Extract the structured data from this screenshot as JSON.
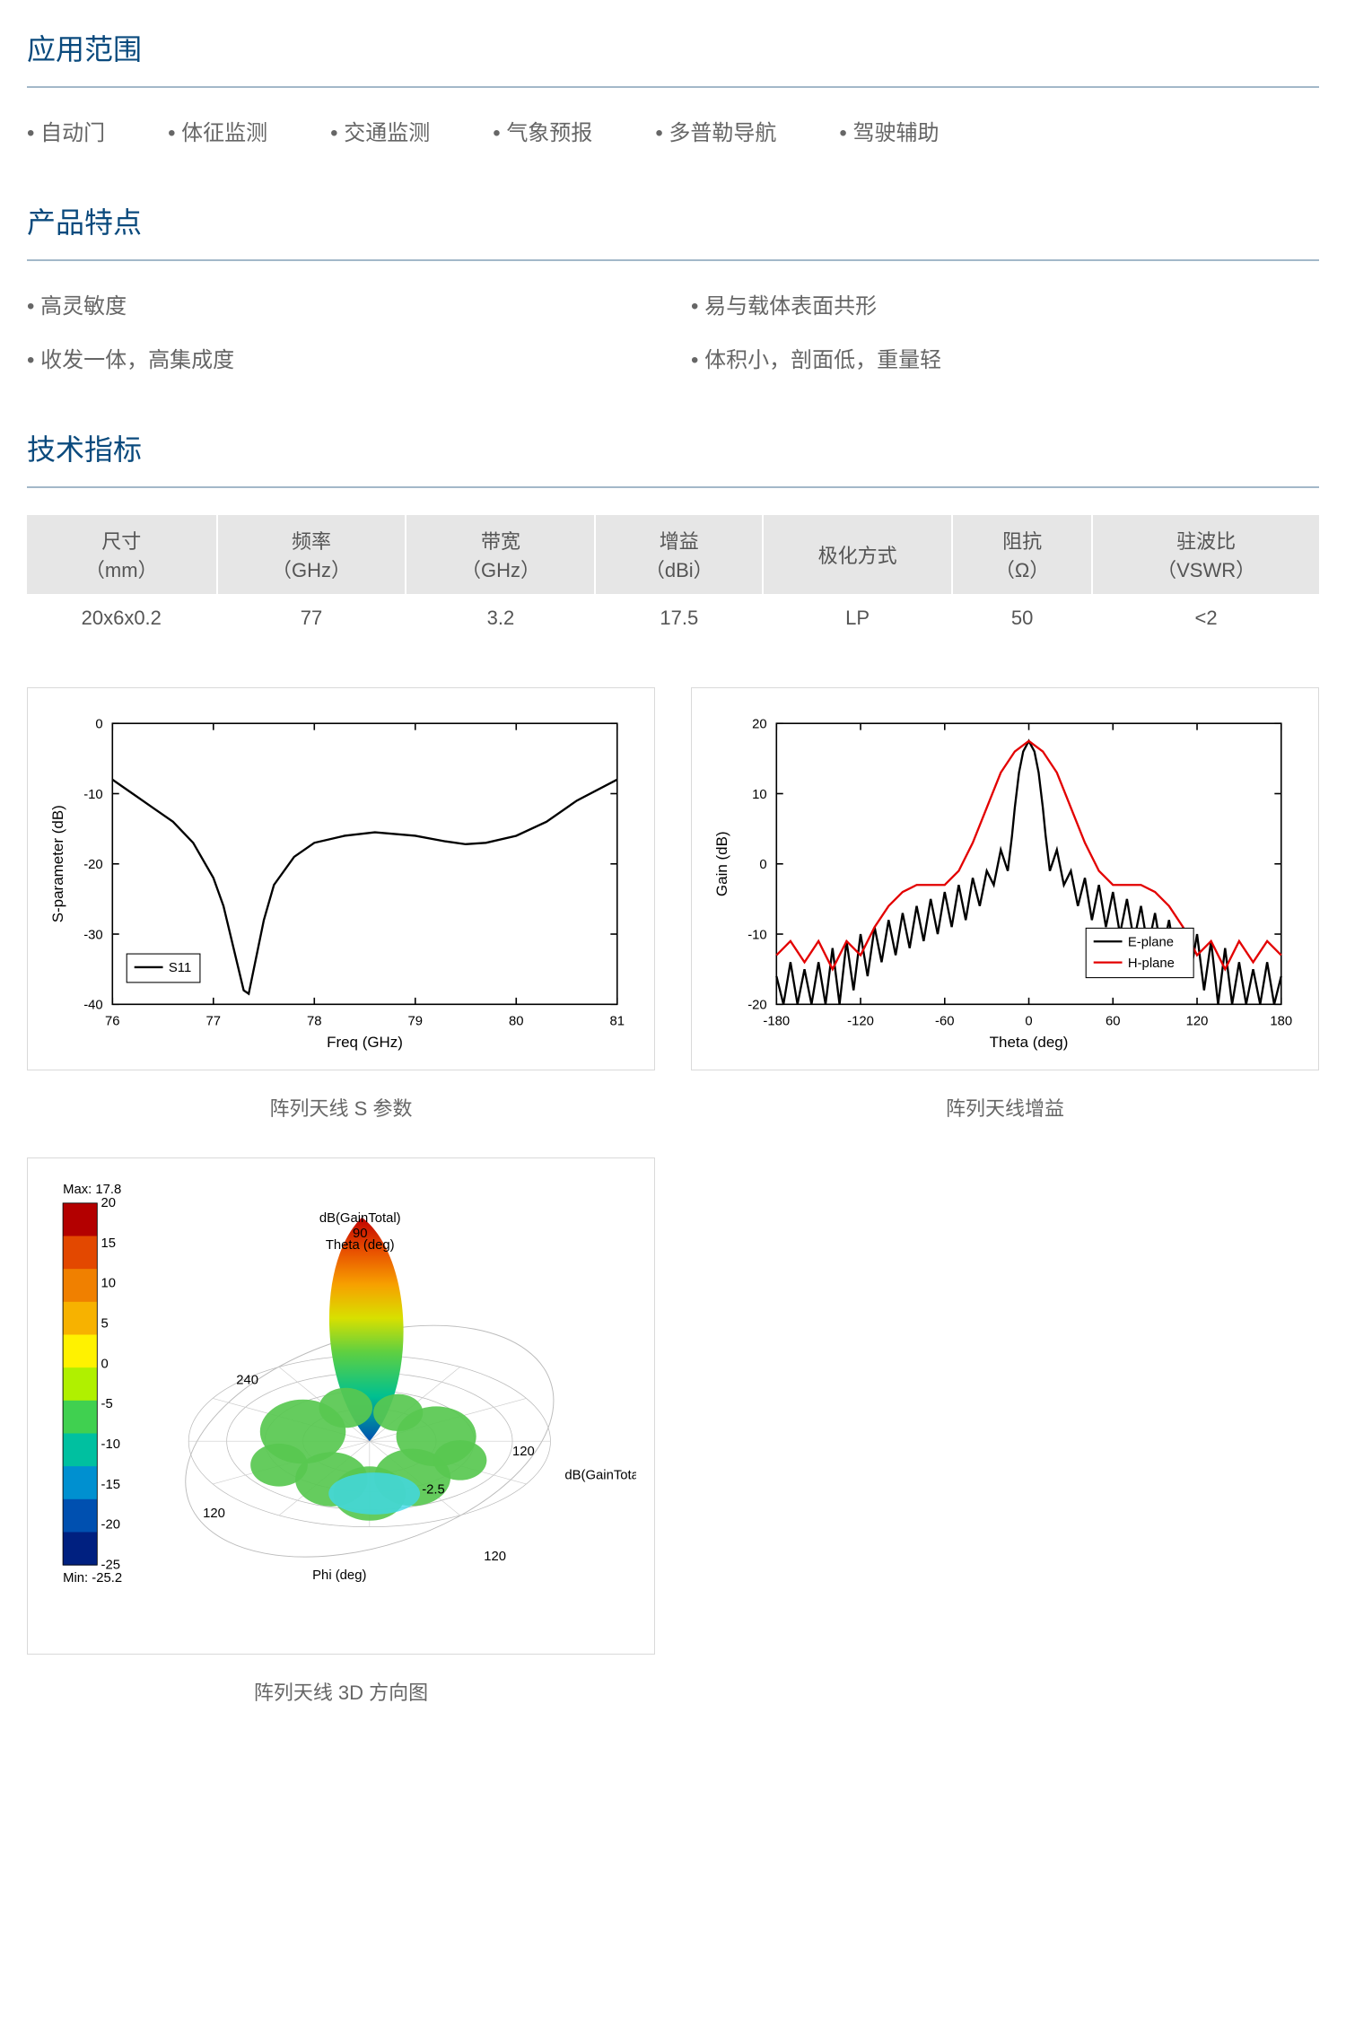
{
  "colors": {
    "heading": "#0a4a7d",
    "border": "#a3b8c9",
    "bullet_text": "#666666",
    "table_header_bg": "#e6e6e6"
  },
  "sections": {
    "applications": {
      "title": "应用范围"
    },
    "features": {
      "title": "产品特点"
    },
    "specs": {
      "title": "技术指标"
    }
  },
  "applications": [
    "自动门",
    "体征监测",
    "交通监测",
    "气象预报",
    "多普勒导航",
    "驾驶辅助"
  ],
  "features": [
    "高灵敏度",
    "易与载体表面共形",
    "收发一体，高集成度",
    "体积小，剖面低，重量轻"
  ],
  "spec_table": {
    "headers": [
      {
        "label": "尺寸",
        "unit": "（mm）"
      },
      {
        "label": "频率",
        "unit": "（GHz）"
      },
      {
        "label": "带宽",
        "unit": "（GHz）"
      },
      {
        "label": "增益",
        "unit": "（dBi）"
      },
      {
        "label": "极化方式",
        "unit": ""
      },
      {
        "label": "阻抗",
        "unit": "（Ω）"
      },
      {
        "label": "驻波比",
        "unit": "（VSWR）"
      }
    ],
    "row": [
      "20x6x0.2",
      "77",
      "3.2",
      "17.5",
      "LP",
      "50",
      "<2"
    ]
  },
  "chart_s11": {
    "caption": "阵列天线 S 参数",
    "type": "line",
    "xlabel": "Freq (GHz)",
    "ylabel": "S-parameter (dB)",
    "xlim": [
      76,
      81
    ],
    "xtick_step": 1,
    "ylim": [
      -40,
      0
    ],
    "ytick_step": 10,
    "legend": {
      "label": "S11",
      "color": "#000000"
    },
    "line_color": "#000000",
    "line_width": 2.2,
    "points": [
      [
        76.0,
        -8
      ],
      [
        76.2,
        -10
      ],
      [
        76.4,
        -12
      ],
      [
        76.6,
        -14
      ],
      [
        76.8,
        -17
      ],
      [
        77.0,
        -22
      ],
      [
        77.1,
        -26
      ],
      [
        77.2,
        -32
      ],
      [
        77.3,
        -38
      ],
      [
        77.35,
        -38.5
      ],
      [
        77.4,
        -35
      ],
      [
        77.5,
        -28
      ],
      [
        77.6,
        -23
      ],
      [
        77.8,
        -19
      ],
      [
        78.0,
        -17
      ],
      [
        78.3,
        -16
      ],
      [
        78.6,
        -15.5
      ],
      [
        79.0,
        -16
      ],
      [
        79.3,
        -16.8
      ],
      [
        79.5,
        -17.2
      ],
      [
        79.7,
        -17.0
      ],
      [
        80.0,
        -16
      ],
      [
        80.3,
        -14
      ],
      [
        80.6,
        -11
      ],
      [
        81.0,
        -8
      ]
    ]
  },
  "chart_gain": {
    "caption": "阵列天线增益",
    "type": "line",
    "xlabel": "Theta (deg)",
    "ylabel": "Gain (dB)",
    "xlim": [
      -180,
      180
    ],
    "xtick_step": 60,
    "ylim": [
      -20,
      20
    ],
    "ytick_step": 10,
    "series": [
      {
        "label": "E-plane",
        "color": "#000000",
        "points": [
          [
            -180,
            -16
          ],
          [
            -175,
            -20
          ],
          [
            -170,
            -14
          ],
          [
            -165,
            -20
          ],
          [
            -160,
            -15
          ],
          [
            -155,
            -20
          ],
          [
            -150,
            -14
          ],
          [
            -145,
            -20
          ],
          [
            -140,
            -12
          ],
          [
            -135,
            -20
          ],
          [
            -130,
            -11
          ],
          [
            -125,
            -18
          ],
          [
            -120,
            -10
          ],
          [
            -115,
            -16
          ],
          [
            -110,
            -9
          ],
          [
            -105,
            -14
          ],
          [
            -100,
            -8
          ],
          [
            -95,
            -13
          ],
          [
            -90,
            -7
          ],
          [
            -85,
            -12
          ],
          [
            -80,
            -6
          ],
          [
            -75,
            -11
          ],
          [
            -70,
            -5
          ],
          [
            -65,
            -10
          ],
          [
            -60,
            -4
          ],
          [
            -55,
            -9
          ],
          [
            -50,
            -3
          ],
          [
            -45,
            -8
          ],
          [
            -40,
            -2
          ],
          [
            -35,
            -6
          ],
          [
            -30,
            -1
          ],
          [
            -25,
            -3
          ],
          [
            -20,
            2
          ],
          [
            -15,
            -1
          ],
          [
            -12,
            4
          ],
          [
            -10,
            8
          ],
          [
            -7,
            13
          ],
          [
            -4,
            16
          ],
          [
            0,
            17.5
          ],
          [
            4,
            16
          ],
          [
            7,
            13
          ],
          [
            10,
            8
          ],
          [
            12,
            4
          ],
          [
            15,
            -1
          ],
          [
            20,
            2
          ],
          [
            25,
            -3
          ],
          [
            30,
            -1
          ],
          [
            35,
            -6
          ],
          [
            40,
            -2
          ],
          [
            45,
            -8
          ],
          [
            50,
            -3
          ],
          [
            55,
            -9
          ],
          [
            60,
            -4
          ],
          [
            65,
            -10
          ],
          [
            70,
            -5
          ],
          [
            75,
            -11
          ],
          [
            80,
            -6
          ],
          [
            85,
            -12
          ],
          [
            90,
            -7
          ],
          [
            95,
            -13
          ],
          [
            100,
            -8
          ],
          [
            105,
            -14
          ],
          [
            110,
            -9
          ],
          [
            115,
            -16
          ],
          [
            120,
            -10
          ],
          [
            125,
            -18
          ],
          [
            130,
            -11
          ],
          [
            135,
            -20
          ],
          [
            140,
            -12
          ],
          [
            145,
            -20
          ],
          [
            150,
            -14
          ],
          [
            155,
            -20
          ],
          [
            160,
            -15
          ],
          [
            165,
            -20
          ],
          [
            170,
            -14
          ],
          [
            175,
            -20
          ],
          [
            180,
            -16
          ]
        ]
      },
      {
        "label": "H-plane",
        "color": "#e30000",
        "points": [
          [
            -180,
            -13
          ],
          [
            -170,
            -11
          ],
          [
            -160,
            -14
          ],
          [
            -150,
            -11
          ],
          [
            -140,
            -15
          ],
          [
            -130,
            -11
          ],
          [
            -120,
            -13
          ],
          [
            -110,
            -9
          ],
          [
            -100,
            -6
          ],
          [
            -90,
            -4
          ],
          [
            -80,
            -3
          ],
          [
            -70,
            -3
          ],
          [
            -60,
            -3
          ],
          [
            -50,
            -1
          ],
          [
            -40,
            3
          ],
          [
            -30,
            8
          ],
          [
            -20,
            13
          ],
          [
            -10,
            16
          ],
          [
            0,
            17.5
          ],
          [
            10,
            16
          ],
          [
            20,
            13
          ],
          [
            30,
            8
          ],
          [
            40,
            3
          ],
          [
            50,
            -1
          ],
          [
            60,
            -3
          ],
          [
            70,
            -3
          ],
          [
            80,
            -3
          ],
          [
            90,
            -4
          ],
          [
            100,
            -6
          ],
          [
            110,
            -9
          ],
          [
            120,
            -13
          ],
          [
            130,
            -11
          ],
          [
            140,
            -15
          ],
          [
            150,
            -11
          ],
          [
            160,
            -14
          ],
          [
            170,
            -11
          ],
          [
            180,
            -13
          ]
        ]
      }
    ]
  },
  "chart_3d": {
    "caption": "阵列天线 3D 方向图",
    "colorbar": {
      "max_label": "Max:  17.8",
      "min_label": "Min:  -25.2",
      "ticks": [
        "20",
        "15",
        "10",
        "5",
        "0",
        "-5",
        "-10",
        "-15",
        "-20",
        "-25"
      ],
      "colors": [
        "#b30000",
        "#e34800",
        "#f08000",
        "#f7b200",
        "#fff200",
        "#b0f000",
        "#40d050",
        "#00c0a0",
        "#0090d0",
        "#0050b0",
        "#002080"
      ]
    },
    "top_label": "dB(GainTotal)",
    "side_label": "dB(GainTotal)",
    "theta_label": "Theta (deg)",
    "phi_label": "Phi (deg)",
    "ring_labels": [
      "240",
      "120",
      "120",
      "120",
      "-2.5"
    ],
    "angle_label": "90"
  }
}
